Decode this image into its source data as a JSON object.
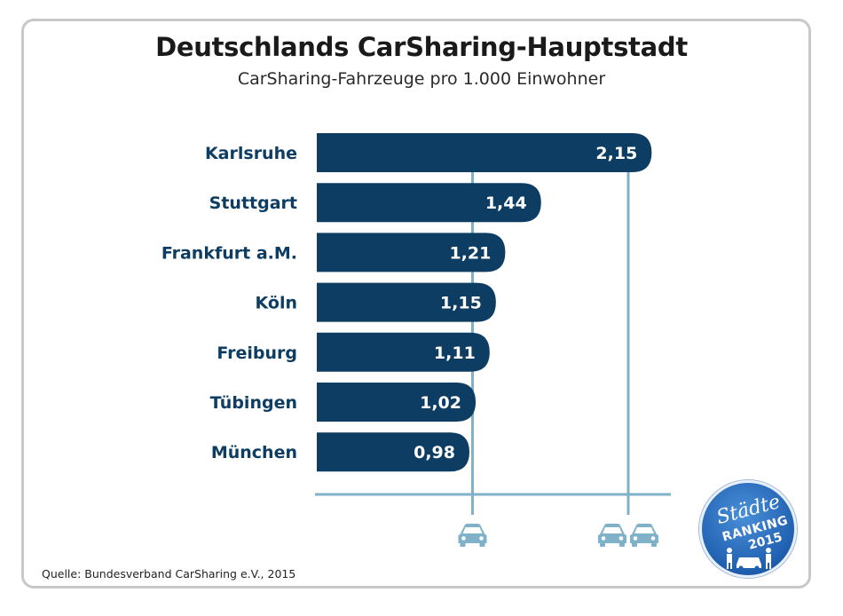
{
  "title": "Deutschlands CarSharing-Hauptstadt",
  "subtitle": "CarSharing-Fahrzeuge pro 1.000 Einwohner",
  "source": "Quelle: Bundesverband CarSharing e.V., 2015",
  "badge": {
    "line1": "Städte",
    "line2": "RANKING",
    "line3": "2015"
  },
  "colors": {
    "bar": "#0e3d63",
    "label": "#0e3d63",
    "grid": "#7fb2c8",
    "car_icon": "#7fb2c8"
  },
  "chart_data": {
    "type": "bar",
    "orientation": "horizontal",
    "title": "Deutschlands CarSharing-Hauptstadt",
    "subtitle": "CarSharing-Fahrzeuge pro 1.000 Einwohner",
    "categories": [
      "Karlsruhe",
      "Stuttgart",
      "Frankfurt a.M.",
      "Köln",
      "Freiburg",
      "Tübingen",
      "München"
    ],
    "values": [
      2.15,
      1.44,
      1.21,
      1.15,
      1.11,
      1.02,
      0.98
    ],
    "value_labels": [
      "2,15",
      "1,44",
      "1,21",
      "1,15",
      "1,11",
      "1,02",
      "0,98"
    ],
    "xlim": [
      0,
      2.25
    ],
    "reference_lines": [
      {
        "value": 1,
        "icon": "one-car-icon"
      },
      {
        "value": 2,
        "icon": "two-cars-icon"
      }
    ],
    "grid": false,
    "legend": "none"
  }
}
